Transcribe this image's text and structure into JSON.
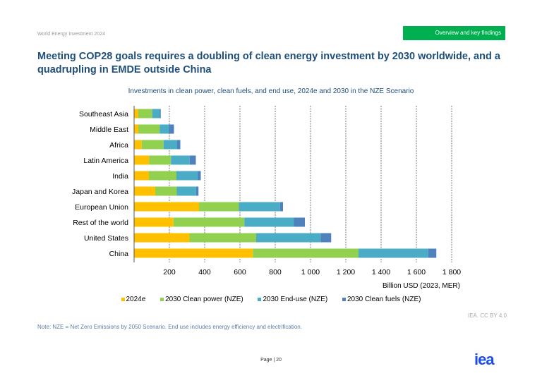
{
  "header": {
    "report": "World Energy Investment 2024",
    "section": "Overview and key findings"
  },
  "title": "Meeting COP28 goals requires a doubling of clean energy investment by 2030 worldwide, and a quadrupling in EMDE outside China",
  "chart_data": {
    "type": "bar",
    "orientation": "horizontal",
    "stacked": true,
    "title": "Investments in clean power, clean fuels, and end use, 2024e and 2030 in the NZE Scenario",
    "xlabel": "Billion USD (2023, MER)",
    "ylabel": "",
    "xlim": [
      0,
      1800
    ],
    "xticks": [
      200,
      400,
      600,
      800,
      1000,
      1200,
      1400,
      1600,
      1800
    ],
    "xtick_labels": [
      "200",
      "400",
      "600",
      "800",
      "1 000",
      "1 200",
      "1 400",
      "1 600",
      "1 800"
    ],
    "grid": "vertical dashed",
    "legend_position": "bottom",
    "categories": [
      "Southeast Asia",
      "Middle East",
      "Africa",
      "Latin America",
      "India",
      "Japan and Korea",
      "European Union",
      "Rest of the world",
      "United States",
      "China"
    ],
    "series": [
      {
        "name": "2024e",
        "color": "#ffc000",
        "values": [
          24,
          24,
          43,
          85,
          84,
          120,
          368,
          223,
          314,
          673
        ]
      },
      {
        "name": "2030 Clean power (NZE)",
        "color": "#92d050",
        "values": [
          79,
          121,
          124,
          124,
          156,
          122,
          226,
          402,
          378,
          599
        ]
      },
      {
        "name": "2030 End-use (NZE)",
        "color": "#4bacc6",
        "values": [
          43,
          53,
          77,
          106,
          122,
          109,
          233,
          281,
          365,
          395
        ]
      },
      {
        "name": "2030 Clean fuels (NZE)",
        "color": "#4f81bd",
        "values": [
          5,
          28,
          18,
          35,
          16,
          14,
          17,
          62,
          60,
          46
        ]
      }
    ]
  },
  "credit": "IEA. CC BY 4.0",
  "note": "Note: NZE = Net Zero Emissions by 2050 Scenario. End use includes energy efficiency and electrification.",
  "footer": {
    "page": "Page | 20",
    "logo": "iea"
  }
}
